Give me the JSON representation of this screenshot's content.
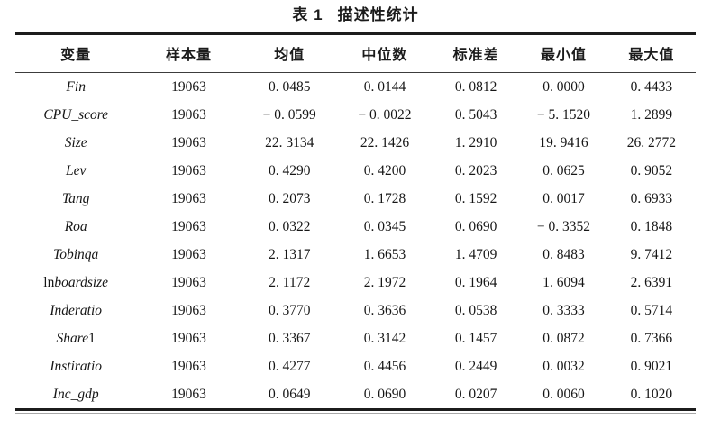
{
  "page": {
    "background_color": "#ffffff",
    "text_color": "#1b1b1b",
    "rule_color": "#1c1c1c"
  },
  "title": {
    "label": "表 1",
    "text": "描述性统计"
  },
  "table": {
    "columns": [
      "变量",
      "样本量",
      "均值",
      "中位数",
      "标准差",
      "最小值",
      "最大值"
    ],
    "rows": [
      {
        "variable": {
          "pre": "",
          "italic": "Fin",
          "post": ""
        },
        "values": [
          "19063",
          "0. 0485",
          "0. 0144",
          "0. 0812",
          "0. 0000",
          "0. 4433"
        ]
      },
      {
        "variable": {
          "pre": "",
          "italic": "CPU_score",
          "post": ""
        },
        "values": [
          "19063",
          "− 0. 0599",
          "− 0. 0022",
          "0. 5043",
          "− 5. 1520",
          "1. 2899"
        ]
      },
      {
        "variable": {
          "pre": "",
          "italic": "Size",
          "post": ""
        },
        "values": [
          "19063",
          "22. 3134",
          "22. 1426",
          "1. 2910",
          "19. 9416",
          "26. 2772"
        ]
      },
      {
        "variable": {
          "pre": "",
          "italic": "Lev",
          "post": ""
        },
        "values": [
          "19063",
          "0. 4290",
          "0. 4200",
          "0. 2023",
          "0. 0625",
          "0. 9052"
        ]
      },
      {
        "variable": {
          "pre": "",
          "italic": "Tang",
          "post": ""
        },
        "values": [
          "19063",
          "0. 2073",
          "0. 1728",
          "0. 1592",
          "0. 0017",
          "0. 6933"
        ]
      },
      {
        "variable": {
          "pre": "",
          "italic": "Roa",
          "post": ""
        },
        "values": [
          "19063",
          "0. 0322",
          "0. 0345",
          "0. 0690",
          "− 0. 3352",
          "0. 1848"
        ]
      },
      {
        "variable": {
          "pre": "",
          "italic": "Tobinqa",
          "post": ""
        },
        "values": [
          "19063",
          "2. 1317",
          "1. 6653",
          "1. 4709",
          "0. 8483",
          "9. 7412"
        ]
      },
      {
        "variable": {
          "pre": "ln",
          "italic": "boardsize",
          "post": ""
        },
        "values": [
          "19063",
          "2. 1172",
          "2. 1972",
          "0. 1964",
          "1. 6094",
          "2. 6391"
        ]
      },
      {
        "variable": {
          "pre": "",
          "italic": "Inderatio",
          "post": ""
        },
        "values": [
          "19063",
          "0. 3770",
          "0. 3636",
          "0. 0538",
          "0. 3333",
          "0. 5714"
        ]
      },
      {
        "variable": {
          "pre": "",
          "italic": "Share",
          "post": "1"
        },
        "values": [
          "19063",
          "0. 3367",
          "0. 3142",
          "0. 1457",
          "0. 0872",
          "0. 7366"
        ]
      },
      {
        "variable": {
          "pre": "",
          "italic": "Instiratio",
          "post": ""
        },
        "values": [
          "19063",
          "0. 4277",
          "0. 4456",
          "0. 2449",
          "0. 0032",
          "0. 9021"
        ]
      },
      {
        "variable": {
          "pre": "",
          "italic": "Inc_gdp",
          "post": ""
        },
        "values": [
          "19063",
          "0. 0649",
          "0. 0690",
          "0. 0207",
          "0. 0060",
          "0. 1020"
        ]
      }
    ]
  }
}
